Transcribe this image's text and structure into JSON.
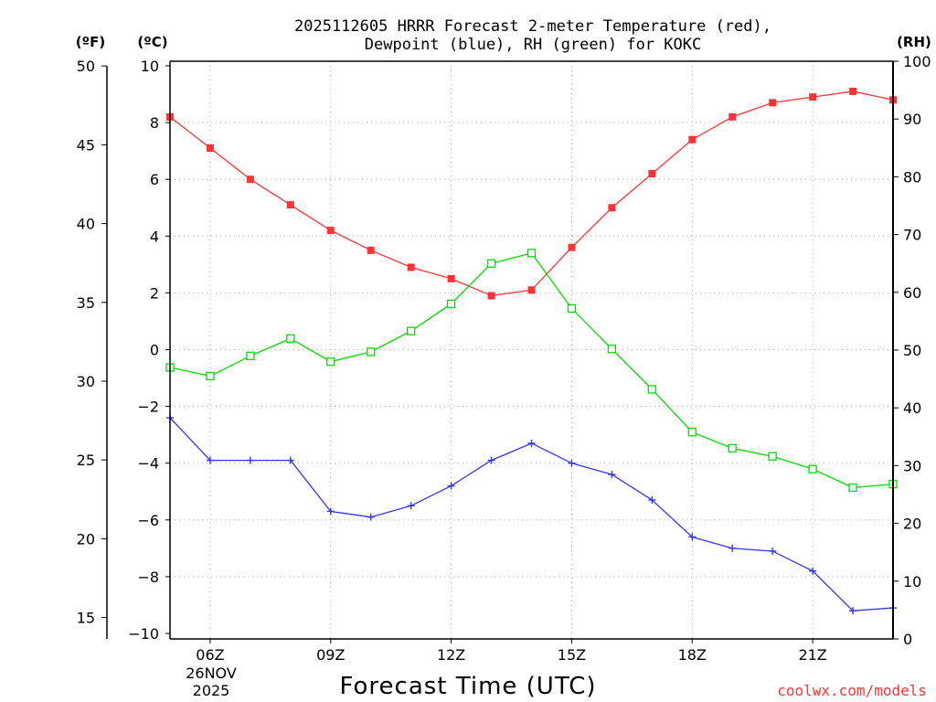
{
  "chart_data": {
    "type": "line",
    "title": [
      "2025112605 HRRR Forecast 2-meter Temperature (red),",
      "Dewpoint (blue), RH (green) for KOKC"
    ],
    "xlabel": "Forecast Time (UTC)",
    "credit": "coolwx.com/models",
    "date_label": [
      "26NOV",
      "2025"
    ],
    "units": {
      "fahrenheit": "(ºF)",
      "celsius": "(ºC)",
      "rh": "(RH)"
    },
    "x": [
      5,
      6,
      7,
      8,
      9,
      10,
      11,
      12,
      13,
      14,
      15,
      16,
      17,
      18,
      19,
      20,
      21,
      22,
      23
    ],
    "xlim": [
      5,
      23
    ],
    "x_ticks": [
      {
        "hour": 6,
        "label": "06Z"
      },
      {
        "hour": 9,
        "label": "09Z"
      },
      {
        "hour": 12,
        "label": "12Z"
      },
      {
        "hour": 15,
        "label": "15Z"
      },
      {
        "hour": 18,
        "label": "18Z"
      },
      {
        "hour": 21,
        "label": "21Z"
      }
    ],
    "celsius_axis": {
      "lim": [
        -10,
        10
      ],
      "ticks": [
        -10,
        -8,
        -6,
        -4,
        -2,
        0,
        2,
        4,
        6,
        8,
        10
      ],
      "labels": [
        "−10",
        "−8",
        "−6",
        "−4",
        "−2",
        "0",
        "2",
        "4",
        "6",
        "8",
        "10"
      ]
    },
    "fahrenheit_axis": {
      "lim": [
        14,
        50
      ],
      "ticks": [
        15,
        20,
        25,
        30,
        35,
        40,
        45,
        50
      ],
      "labels": [
        "15",
        "20",
        "25",
        "30",
        "35",
        "40",
        "45",
        "50"
      ]
    },
    "rh_axis": {
      "lim": [
        0,
        100
      ],
      "ticks": [
        0,
        10,
        20,
        30,
        40,
        50,
        60,
        70,
        80,
        90,
        100
      ],
      "labels": [
        "0",
        "10",
        "20",
        "30",
        "40",
        "50",
        "60",
        "70",
        "80",
        "90",
        "100"
      ]
    },
    "series": [
      {
        "name": "Temperature",
        "unit": "C",
        "axis": "celsius",
        "color": "#ff3333",
        "marker": "filled-square",
        "values": [
          8.2,
          7.1,
          6.0,
          5.1,
          4.2,
          3.5,
          2.9,
          2.5,
          1.9,
          2.1,
          3.6,
          5.0,
          6.2,
          7.4,
          8.2,
          8.7,
          8.9,
          9.1,
          8.8
        ]
      },
      {
        "name": "Dewpoint",
        "unit": "C",
        "axis": "celsius",
        "color": "#3333ff",
        "marker": "plus",
        "values": [
          -2.4,
          -3.9,
          -3.9,
          -3.9,
          -5.7,
          -5.9,
          -5.5,
          -4.8,
          -3.9,
          -3.3,
          -4.0,
          -4.4,
          -5.3,
          -6.6,
          -7.0,
          -7.1,
          -7.8,
          -9.2,
          -9.1
        ]
      },
      {
        "name": "RH",
        "unit": "%",
        "axis": "rh",
        "color": "#00dd00",
        "marker": "open-square",
        "values": [
          47,
          45.5,
          49,
          52,
          48,
          49.7,
          53.3,
          58,
          65,
          66.8,
          57.2,
          50.2,
          43.2,
          35.8,
          33,
          31.6,
          29.4,
          26.2,
          26.8
        ]
      }
    ]
  }
}
